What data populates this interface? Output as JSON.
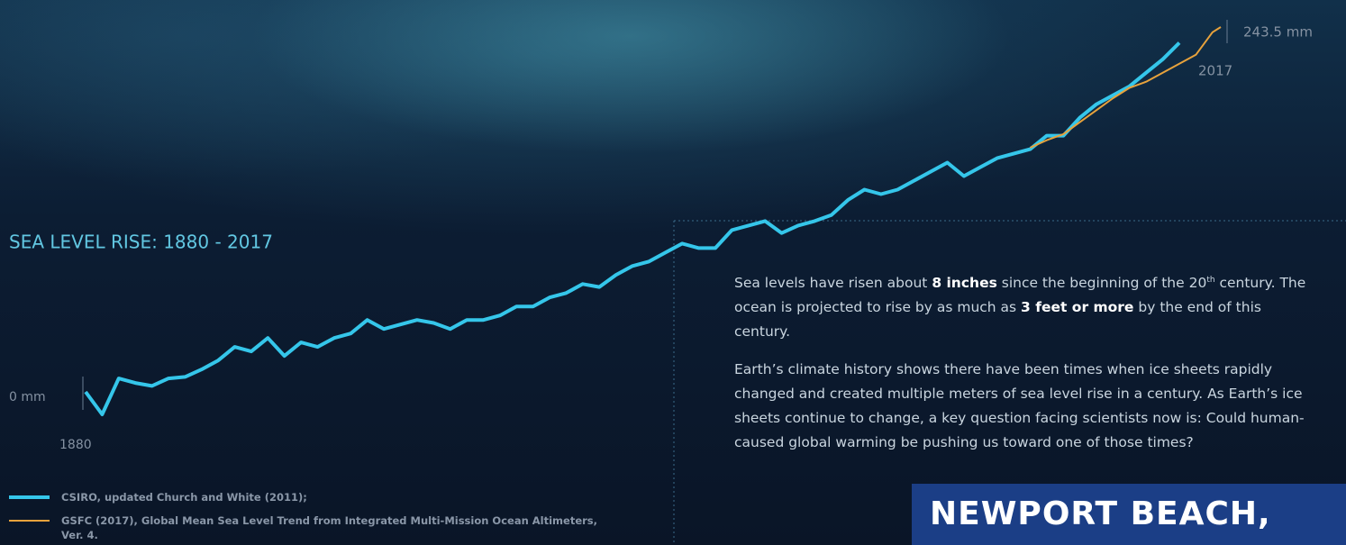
{
  "chart_data": {
    "type": "line",
    "title": "SEA LEVEL RISE: 1880 - 2017",
    "x_start_label": "1880",
    "y_start_label": "0 mm",
    "end_value_label": "243.5 mm",
    "end_year_label": "2017",
    "xlim": [
      1880,
      2017
    ],
    "ylim": [
      -20,
      250
    ],
    "x": [
      1880,
      1882,
      1884,
      1886,
      1888,
      1890,
      1892,
      1894,
      1896,
      1898,
      1900,
      1902,
      1904,
      1906,
      1908,
      1910,
      1912,
      1914,
      1916,
      1918,
      1920,
      1922,
      1924,
      1926,
      1928,
      1930,
      1932,
      1934,
      1936,
      1938,
      1940,
      1942,
      1944,
      1946,
      1948,
      1950,
      1952,
      1954,
      1956,
      1958,
      1960,
      1962,
      1964,
      1966,
      1968,
      1970,
      1972,
      1974,
      1976,
      1978,
      1980,
      1982,
      1984,
      1986,
      1988,
      1990,
      1992,
      1994,
      1996,
      1998,
      2000,
      2002,
      2004,
      2006,
      2008,
      2010,
      2012,
      2014,
      2016,
      2017
    ],
    "series": [
      {
        "name": "CSIRO, updated Church and White (2011);",
        "color": "#35c6ea",
        "values": [
          0,
          -15,
          9,
          6,
          4,
          9,
          10,
          15,
          21,
          30,
          27,
          36,
          24,
          33,
          30,
          36,
          39,
          48,
          42,
          45,
          48,
          46,
          42,
          48,
          48,
          51,
          57,
          57,
          63,
          66,
          72,
          70,
          78,
          84,
          87,
          93,
          99,
          96,
          96,
          108,
          111,
          114,
          106,
          111,
          114,
          118,
          128,
          135,
          132,
          135,
          141,
          147,
          153,
          144,
          150,
          156,
          159,
          162,
          171,
          171,
          183,
          192,
          198,
          204,
          213,
          222,
          233,
          null,
          null,
          null
        ]
      },
      {
        "name": "GSFC (2017), Global Mean Sea Level Trend from Integrated Multi-Mission Ocean Altimeters, Ver. 4.",
        "color": "#e7a23c",
        "values": [
          null,
          null,
          null,
          null,
          null,
          null,
          null,
          null,
          null,
          null,
          null,
          null,
          null,
          null,
          null,
          null,
          null,
          null,
          null,
          null,
          null,
          null,
          null,
          null,
          null,
          null,
          null,
          null,
          null,
          null,
          null,
          null,
          null,
          null,
          null,
          null,
          null,
          null,
          null,
          null,
          null,
          null,
          null,
          null,
          null,
          null,
          null,
          null,
          null,
          null,
          null,
          null,
          null,
          null,
          null,
          null,
          null,
          163,
          168,
          172,
          180,
          188,
          196,
          203,
          207,
          213,
          219,
          225,
          240,
          243.5
        ]
      }
    ]
  },
  "text": {
    "paragraph1": [
      "Sea levels have risen about ",
      "8 inches",
      " since the beginning of the 20",
      "th",
      " century. The ocean is projected to rise by as much as ",
      "3 feet or more",
      " by the end of this century."
    ],
    "paragraph2": "Earth’s climate history shows there have been times when ice sheets rapidly changed and created multiple meters of sea level rise in a century. As Earth’s ice sheets continue to change, a key question facing scientists now is: Could human-caused global warming be pushing us toward one of those times?"
  },
  "banner": "NEWPORT BEACH,"
}
